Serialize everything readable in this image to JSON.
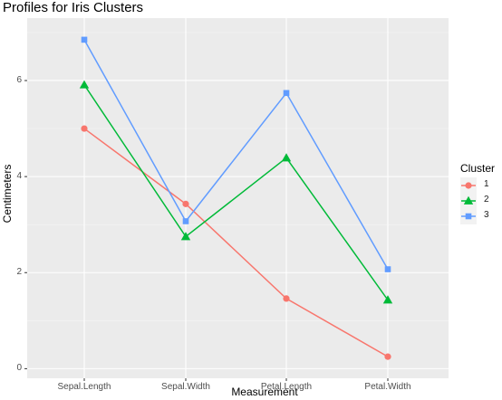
{
  "chart_data": {
    "type": "line",
    "title": "Profiles for Iris Clusters",
    "xlabel": "Measurement",
    "ylabel": "Centimeters",
    "categories": [
      "Sepal.Length",
      "Sepal.Width",
      "Petal.Length",
      "Petal.Width"
    ],
    "ylim": [
      -0.2,
      7.3
    ],
    "yticks": [
      0,
      2,
      4,
      6
    ],
    "yticks_labels": [
      "0",
      "2",
      "4",
      "6"
    ],
    "grid": true,
    "legend": {
      "title": "Cluster",
      "placement": "right"
    },
    "series": [
      {
        "name": "1",
        "color": "#f8766d",
        "marker": "circle",
        "values": [
          5.0,
          3.43,
          1.46,
          0.25
        ]
      },
      {
        "name": "2",
        "color": "#00ba38",
        "marker": "triangle",
        "values": [
          5.91,
          2.75,
          4.39,
          1.43
        ]
      },
      {
        "name": "3",
        "color": "#619cff",
        "marker": "square",
        "values": [
          6.85,
          3.07,
          5.74,
          2.07
        ]
      }
    ]
  }
}
